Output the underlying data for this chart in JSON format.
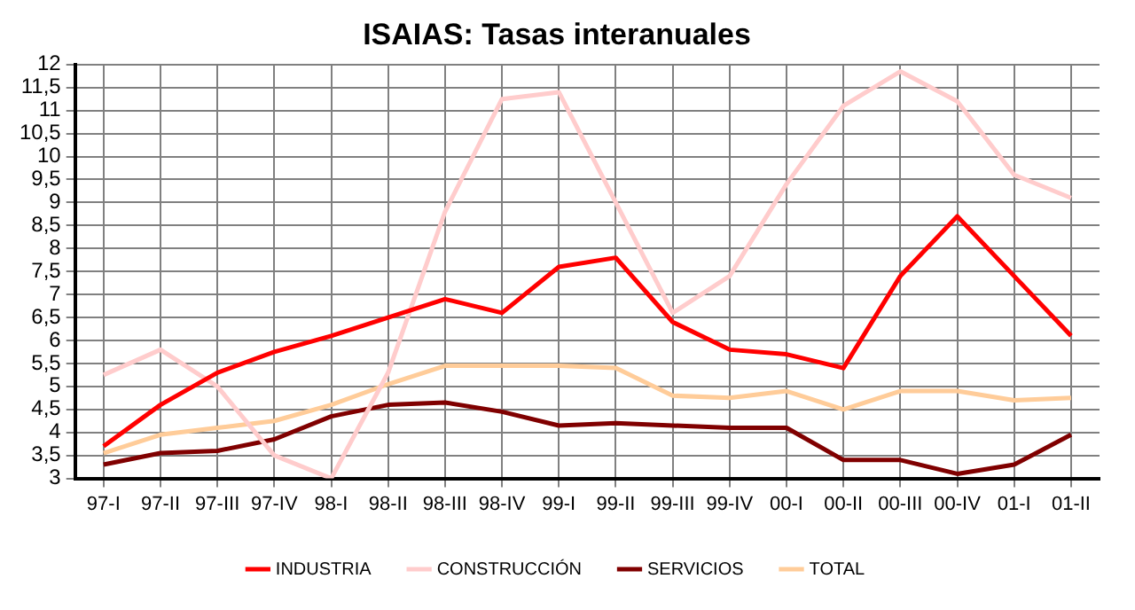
{
  "chart_data": {
    "type": "line",
    "title": "ISAIAS: Tasas interanuales",
    "categories": [
      "97-I",
      "97-II",
      "97-III",
      "97-IV",
      "98-I",
      "98-II",
      "98-III",
      "98-IV",
      "99-I",
      "99-II",
      "99-III",
      "99-IV",
      "00-I",
      "00-II",
      "00-III",
      "00-IV",
      "01-I",
      "01-II"
    ],
    "series": [
      {
        "name": "INDUSTRIA",
        "color": "#ff0000",
        "values": [
          3.7,
          4.6,
          5.3,
          5.75,
          6.1,
          6.5,
          6.9,
          6.6,
          7.6,
          7.8,
          6.4,
          5.8,
          5.7,
          5.4,
          7.4,
          8.7,
          7.4,
          6.1
        ]
      },
      {
        "name": "CONSTRUCCIÓN",
        "color": "#ffcccc",
        "values": [
          5.25,
          5.8,
          5.0,
          3.5,
          3.0,
          5.3,
          8.8,
          11.25,
          11.4,
          9.0,
          6.6,
          7.4,
          9.4,
          11.1,
          11.85,
          11.2,
          9.6,
          9.1
        ]
      },
      {
        "name": "SERVICIOS",
        "color": "#800000",
        "values": [
          3.3,
          3.55,
          3.6,
          3.85,
          4.35,
          4.6,
          4.65,
          4.45,
          4.15,
          4.2,
          4.15,
          4.1,
          4.1,
          3.4,
          3.4,
          3.1,
          3.3,
          3.95
        ]
      },
      {
        "name": "TOTAL",
        "color": "#ffcc99",
        "values": [
          3.55,
          3.95,
          4.1,
          4.25,
          4.6,
          5.05,
          5.45,
          5.45,
          5.45,
          5.4,
          4.8,
          4.75,
          4.9,
          4.5,
          4.9,
          4.9,
          4.7,
          4.75
        ]
      }
    ],
    "ylim": [
      3,
      12
    ],
    "yticks": [
      3,
      {
        "value": 3.5,
        "label": "3,5"
      },
      4,
      {
        "value": 4.5,
        "label": "4,5"
      },
      5,
      {
        "value": 5.5,
        "label": "5,5"
      },
      6,
      {
        "value": 6.5,
        "label": "6,5"
      },
      7,
      {
        "value": 7.5,
        "label": "7,5"
      },
      8,
      {
        "value": 8.5,
        "label": "8,5"
      },
      9,
      {
        "value": 9.5,
        "label": "9,5"
      },
      10,
      {
        "value": 10.5,
        "label": "10,5"
      },
      11,
      {
        "value": 11.5,
        "label": "11,5"
      },
      12
    ],
    "grid": true,
    "legend": "bottom",
    "marker": "none",
    "line_style": "solid"
  }
}
